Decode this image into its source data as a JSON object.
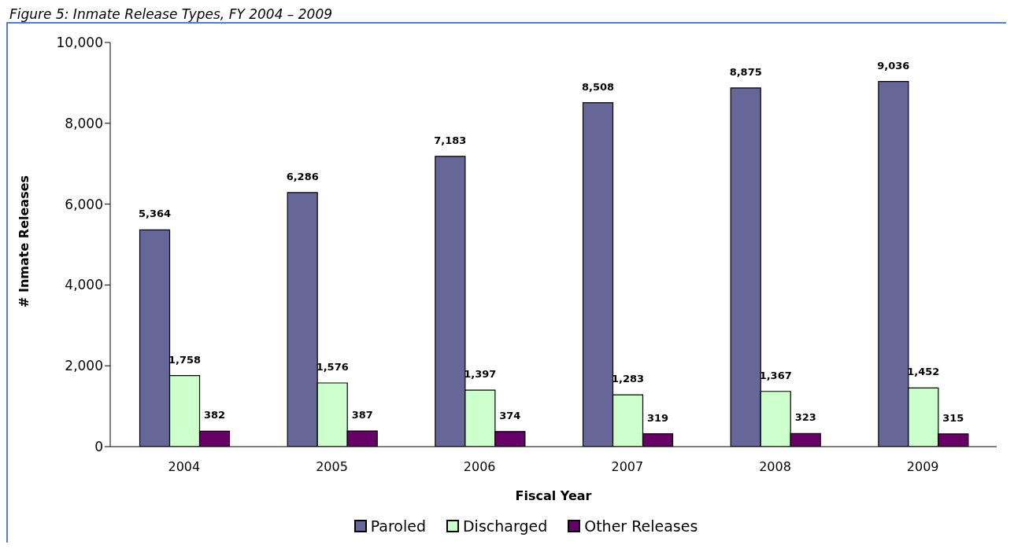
{
  "chart_data": {
    "type": "bar",
    "title": "Figure 5: Inmate Release Types, FY 2004 – 2009",
    "xlabel": "Fiscal Year",
    "ylabel": "# Inmate Releases",
    "categories": [
      "2004",
      "2005",
      "2006",
      "2007",
      "2008",
      "2009"
    ],
    "series": [
      {
        "name": "Paroled",
        "color": "#666699",
        "values": [
          5364,
          6286,
          7183,
          8508,
          8875,
          9036
        ],
        "value_labels": [
          "5,364",
          "6,286",
          "7,183",
          "8,508",
          "8,875",
          "9,036"
        ]
      },
      {
        "name": "Discharged",
        "color": "#ccffcc",
        "values": [
          1758,
          1576,
          1397,
          1283,
          1367,
          1452
        ],
        "value_labels": [
          "1,758",
          "1,576",
          "1,397",
          "1,283",
          "1,367",
          "1,452"
        ]
      },
      {
        "name": "Other Releases",
        "color": "#660066",
        "values": [
          382,
          387,
          374,
          319,
          323,
          315
        ],
        "value_labels": [
          "382",
          "387",
          "374",
          "319",
          "323",
          "315"
        ]
      }
    ],
    "ylim": [
      0,
      10000
    ],
    "yticks": [
      0,
      {
        "value": 2000,
        "label": "2,000"
      },
      {
        "value": 4000,
        "label": "4,000"
      },
      {
        "value": 6000,
        "label": "6,000"
      },
      {
        "value": 8000,
        "label": "8,000"
      },
      {
        "value": 10000,
        "label": "10,000"
      }
    ],
    "grid": false,
    "legend": "bottom"
  }
}
